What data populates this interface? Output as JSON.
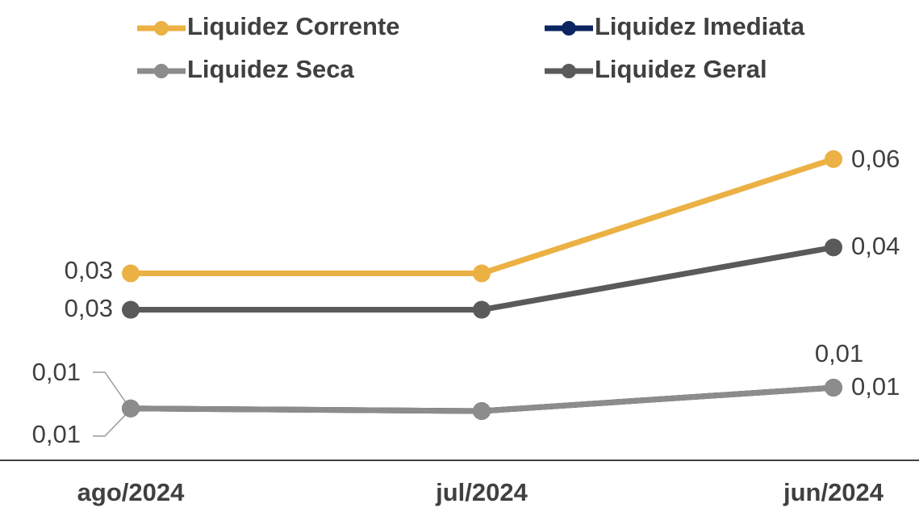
{
  "chart_data": {
    "type": "line",
    "categories": [
      "ago/2024",
      "jul/2024",
      "jun/2024"
    ],
    "series": [
      {
        "name": "Liquidez Corrente",
        "color": "#ebb144",
        "values": [
          0.034,
          0.034,
          0.056
        ],
        "value_labels": [
          "0,03",
          null,
          "0,06"
        ]
      },
      {
        "name": "Liquidez Imediata",
        "color": "#0c2461",
        "values": [
          0.008,
          0.0075,
          0.012
        ],
        "value_labels": [
          "0,01",
          null,
          "0,01"
        ]
      },
      {
        "name": "Liquidez Seca",
        "color": "#8c8c8c",
        "values": [
          0.008,
          0.0075,
          0.012
        ],
        "value_labels": [
          "0,01",
          null,
          "0,01"
        ]
      },
      {
        "name": "Liquidez Geral",
        "color": "#5a5a5a",
        "values": [
          0.027,
          0.027,
          0.039
        ],
        "value_labels": [
          "0,03",
          null,
          "0,04"
        ]
      }
    ],
    "legend": "top"
  }
}
